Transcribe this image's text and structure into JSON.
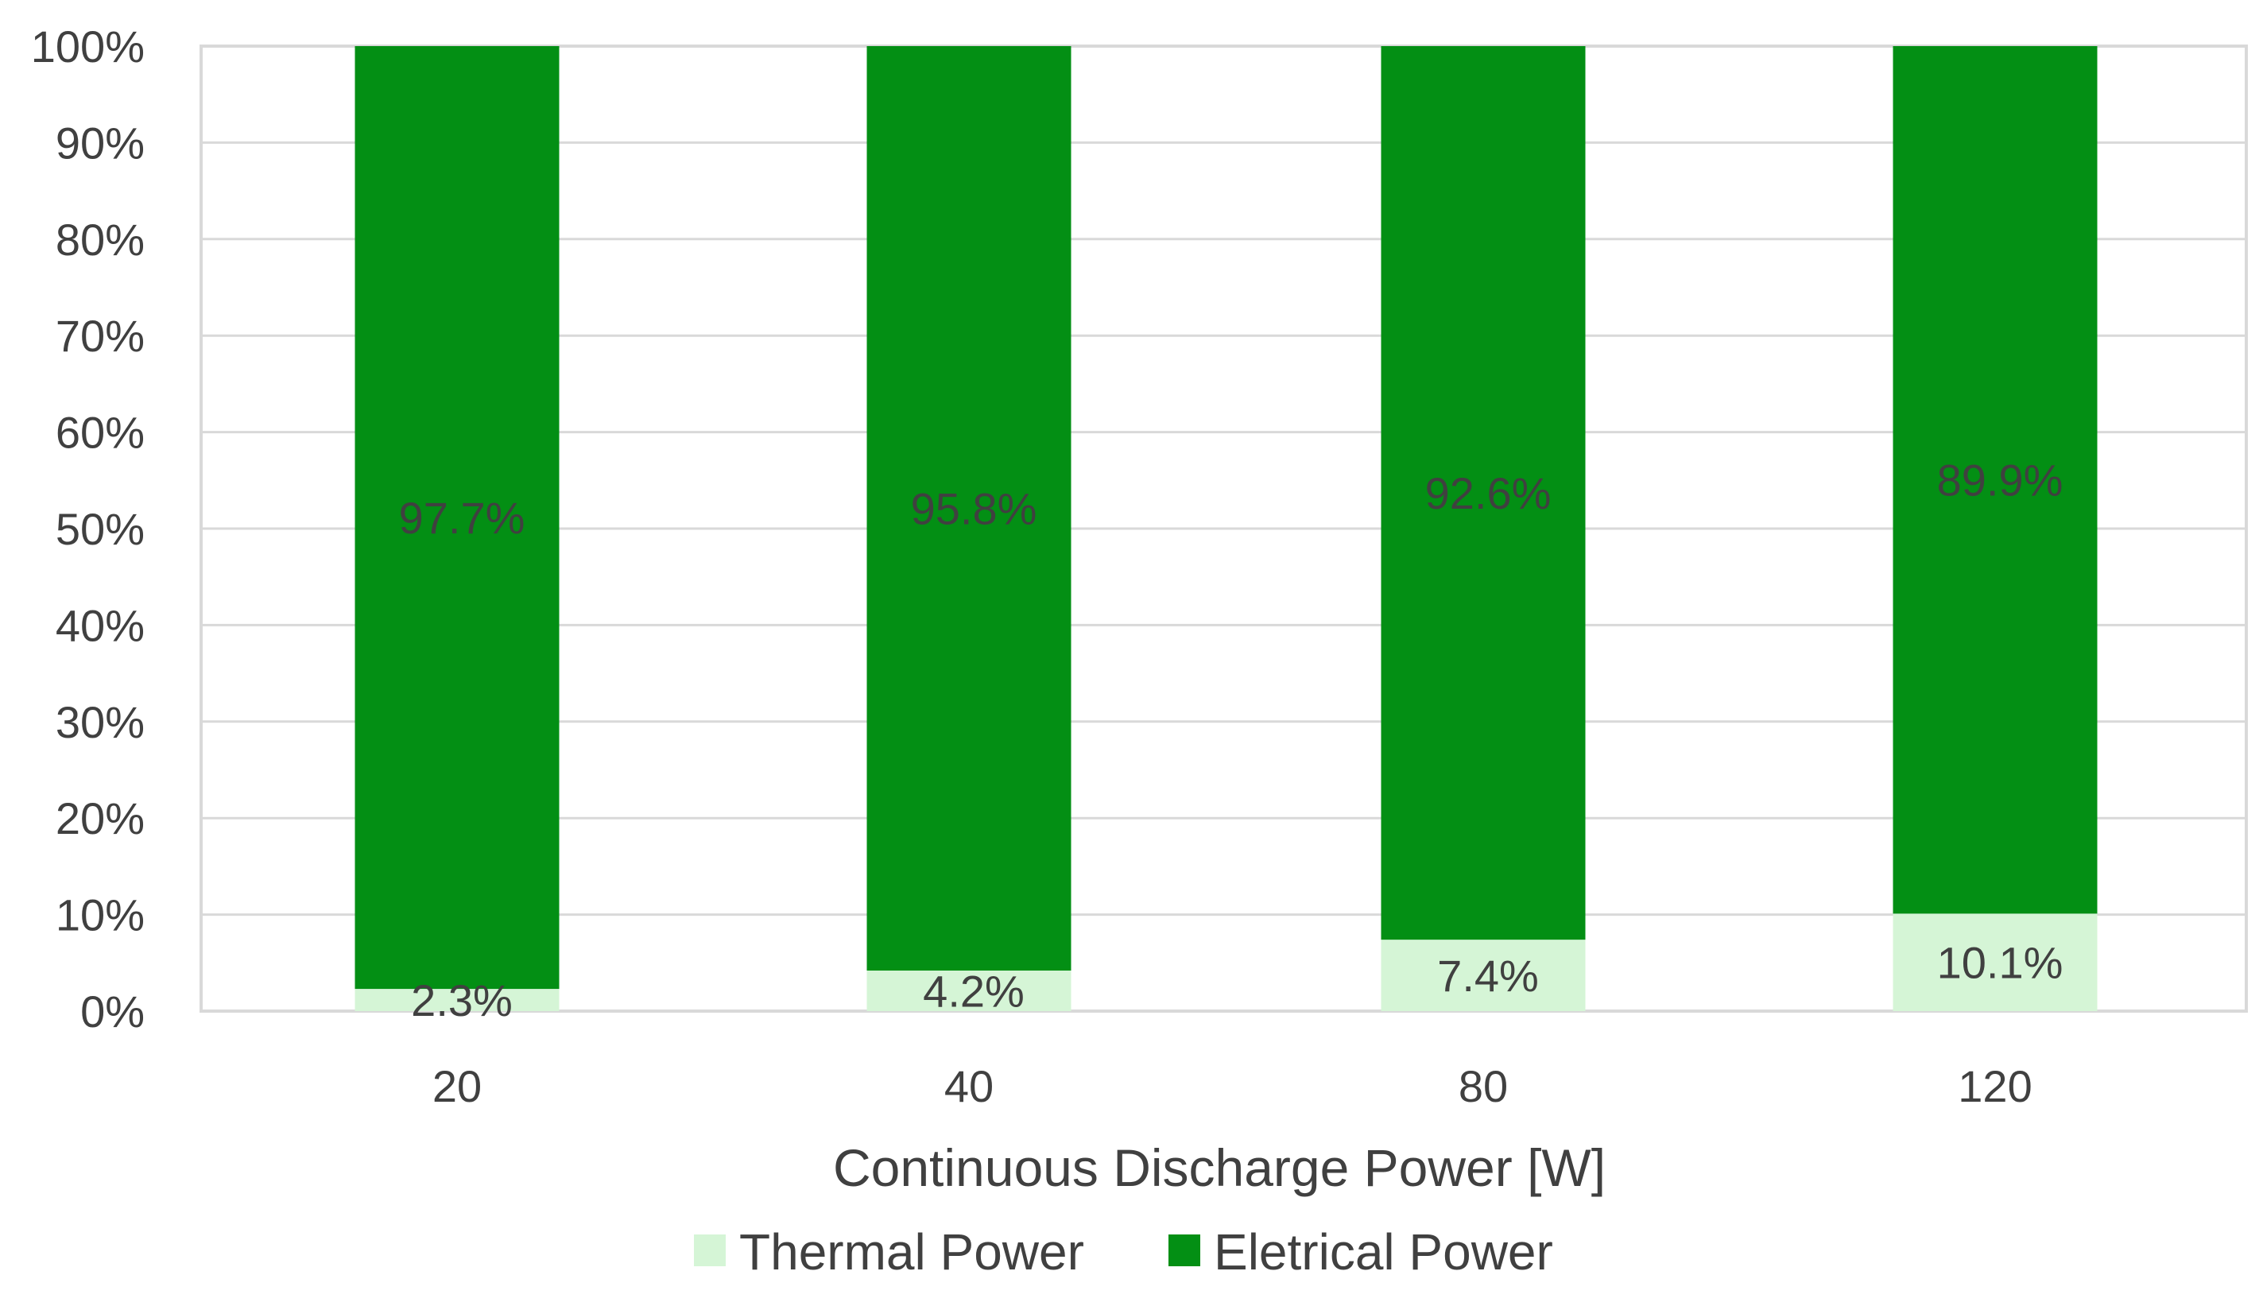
{
  "chart_data": {
    "type": "bar",
    "stacked": true,
    "percent_stacked": true,
    "title": "",
    "xlabel": "Continuous Discharge Power [W]",
    "ylabel": "",
    "categories": [
      "20",
      "40",
      "80",
      "120"
    ],
    "series": [
      {
        "name": "Thermal Power",
        "color": "#d5f5d6",
        "values": [
          2.3,
          4.2,
          7.4,
          10.1
        ],
        "labels": [
          "2.3%",
          "4.2%",
          "7.4%",
          "10.1%"
        ]
      },
      {
        "name": "Eletrical Power",
        "color": "#038f14",
        "values": [
          97.7,
          95.8,
          92.6,
          89.9
        ],
        "labels": [
          "97.7%",
          "95.8%",
          "92.6%",
          "89.9%"
        ]
      }
    ],
    "ylim": [
      0,
      100
    ],
    "y_ticks": [
      0,
      10,
      20,
      30,
      40,
      50,
      60,
      70,
      80,
      90,
      100
    ],
    "y_tick_labels": [
      "0%",
      "10%",
      "20%",
      "30%",
      "40%",
      "50%",
      "60%",
      "70%",
      "80%",
      "90%",
      "100%"
    ],
    "grid": true,
    "legend_position": "bottom"
  }
}
